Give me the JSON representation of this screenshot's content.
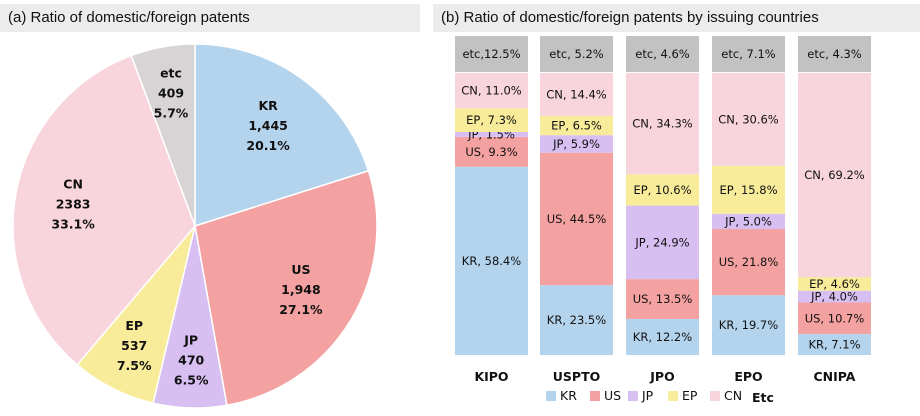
{
  "panel_a": {
    "title": "(a) Ratio of domestic/foreign patents"
  },
  "panel_b": {
    "title": "(b) Ratio of domestic/foreign patents by issuing countries"
  },
  "colors": {
    "KR": "#b4d4ee",
    "US": "#f4a1a1",
    "JP": "#d8bff2",
    "EP": "#f8eb99",
    "CN": "#f8d4dc",
    "etc": "#d8d4d6",
    "etc_header": "#c2c2c2"
  },
  "chart_data": [
    {
      "type": "pie",
      "title": "(a) Ratio of domestic/foreign patents",
      "slices": [
        {
          "name": "KR",
          "count": "1,445",
          "percent": "20.1%",
          "value": 20.1
        },
        {
          "name": "US",
          "count": "1,948",
          "percent": "27.1%",
          "value": 27.1
        },
        {
          "name": "JP",
          "count": "470",
          "percent": "6.5%",
          "value": 6.5
        },
        {
          "name": "EP",
          "count": "537",
          "percent": "7.5%",
          "value": 7.5
        },
        {
          "name": "CN",
          "count": "2383",
          "percent": "33.1%",
          "value": 33.1
        },
        {
          "name": "etc",
          "count": "409",
          "percent": "5.7%",
          "value": 5.7
        }
      ]
    },
    {
      "type": "bar",
      "stacked": true,
      "title": "(b) Ratio of domestic/foreign patents by issuing countries",
      "categories": [
        "KIPO",
        "USPTO",
        "JPO",
        "EPO",
        "CNIPA"
      ],
      "etc_labels": [
        "etc,12.5%",
        "etc, 5.2%",
        "etc, 4.6%",
        "etc, 7.1%",
        "etc, 4.3%"
      ],
      "series": [
        {
          "name": "KR",
          "values": [
            58.4,
            23.5,
            12.2,
            19.7,
            7.1
          ],
          "labels": [
            "KR, 58.4%",
            "KR, 23.5%",
            "KR, 12.2%",
            "KR, 19.7%",
            "KR, 7.1%"
          ]
        },
        {
          "name": "US",
          "values": [
            9.3,
            44.5,
            13.5,
            21.8,
            10.7
          ],
          "labels": [
            "US, 9.3%",
            "US, 44.5%",
            "US, 13.5%",
            "US, 21.8%",
            "US, 10.7%"
          ]
        },
        {
          "name": "JP",
          "values": [
            1.5,
            5.9,
            24.9,
            5.0,
            4.0
          ],
          "labels": [
            "JP, 1.5%",
            "JP, 5.9%",
            "JP, 24.9%",
            "JP, 5.0%",
            "JP, 4.0%"
          ]
        },
        {
          "name": "EP",
          "values": [
            7.3,
            6.5,
            10.6,
            15.8,
            4.6
          ],
          "labels": [
            "EP, 7.3%",
            "EP, 6.5%",
            "EP, 10.6%",
            "EP, 15.8%",
            "EP, 4.6%"
          ]
        },
        {
          "name": "CN",
          "values": [
            11.0,
            14.4,
            34.3,
            30.6,
            69.2
          ],
          "labels": [
            "CN, 11.0%",
            "CN, 14.4%",
            "CN, 34.3%",
            "CN, 30.6%",
            "CN, 69.2%"
          ]
        }
      ],
      "etc_values": [
        12.5,
        5.2,
        4.6,
        7.1,
        4.3
      ],
      "legend": [
        "KR",
        "US",
        "JP",
        "EP",
        "CN",
        "Etc"
      ],
      "legend_position": "bottom"
    }
  ]
}
